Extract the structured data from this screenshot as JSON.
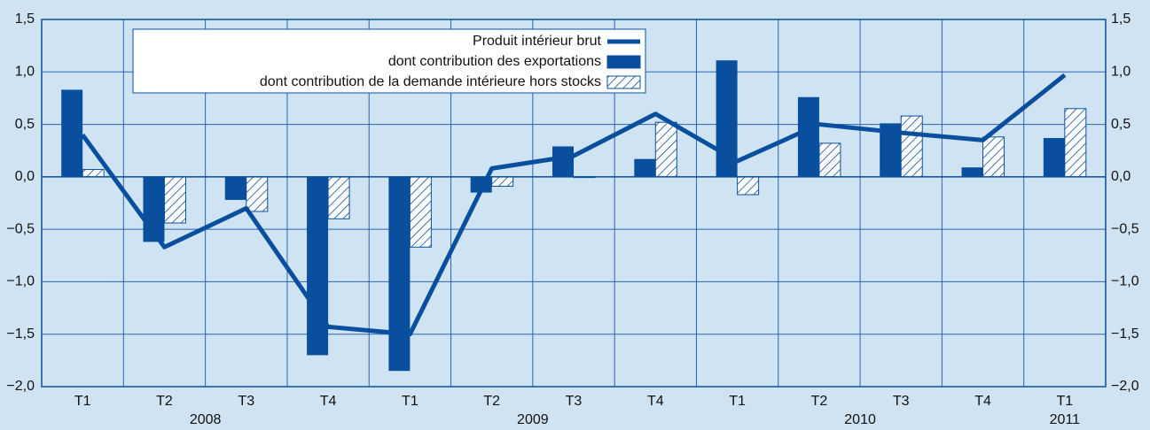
{
  "chart_data": {
    "type": "bar",
    "categories": [
      "T1",
      "T2",
      "T3",
      "T4",
      "T1",
      "T2",
      "T3",
      "T4",
      "T1",
      "T2",
      "T3",
      "T4",
      "T1"
    ],
    "year_groups": [
      {
        "label": "2008",
        "size": 4
      },
      {
        "label": "2009",
        "size": 4
      },
      {
        "label": "2010",
        "size": 4
      },
      {
        "label": "2011",
        "size": 1
      }
    ],
    "series": [
      {
        "name": "Produit intérieur brut",
        "type": "line",
        "color": "#0a4f9e",
        "values": [
          0.4,
          -0.67,
          -0.3,
          -1.43,
          -1.5,
          0.08,
          0.2,
          0.6,
          0.15,
          0.5,
          0.42,
          0.35,
          0.97
        ]
      },
      {
        "name": "dont contribution des exportations",
        "type": "bar",
        "color": "#0a4f9e",
        "values": [
          0.83,
          -0.62,
          -0.22,
          -1.7,
          -1.85,
          -0.15,
          0.29,
          0.17,
          1.11,
          0.76,
          0.51,
          0.09,
          0.37
        ]
      },
      {
        "name": "dont contribution de la demande intérieure hors stocks",
        "type": "bar",
        "pattern": "hatch",
        "color": "#0a4f9e",
        "values": [
          0.07,
          -0.44,
          -0.33,
          -0.4,
          -0.67,
          -0.09,
          0.0,
          0.52,
          -0.17,
          0.32,
          0.58,
          0.38,
          0.65
        ]
      }
    ],
    "ylim": [
      -2.0,
      1.5
    ],
    "yticks": [
      {
        "value": -2.0,
        "label": "−2,0"
      },
      {
        "value": -1.5,
        "label": "−1,5"
      },
      {
        "value": -1.0,
        "label": "−1,0"
      },
      {
        "value": -0.5,
        "label": "−0,5"
      },
      {
        "value": 0,
        "label": "0,0"
      },
      {
        "value": 0.5,
        "label": "0,5"
      },
      {
        "value": 1.0,
        "label": "1,0"
      },
      {
        "value": 1.5,
        "label": "1,5"
      }
    ],
    "grid": true,
    "legend": "top-left"
  }
}
